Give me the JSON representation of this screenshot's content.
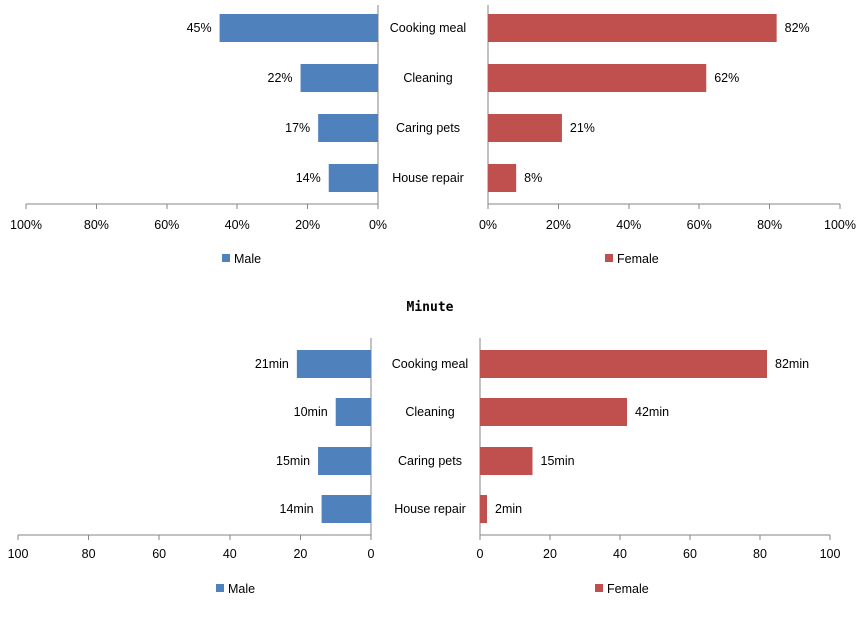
{
  "colors": {
    "male": "#4F81BD",
    "female": "#C0504D"
  },
  "middle_title": "Minute",
  "chart_data": [
    {
      "type": "bar",
      "id": "percent",
      "orientation": "horizontal-butterfly",
      "categories": [
        "Cooking meal",
        "Cleaning",
        "Caring pets",
        "House repair"
      ],
      "series": [
        {
          "name": "Male",
          "values": [
            45,
            22,
            17,
            14
          ],
          "labels": [
            "45%",
            "22%",
            "17%",
            "14%"
          ]
        },
        {
          "name": "Female",
          "values": [
            82,
            62,
            21,
            8
          ],
          "labels": [
            "82%",
            "62%",
            "21%",
            "8%"
          ]
        }
      ],
      "xlim": [
        0,
        100
      ],
      "left_ticks": [
        "100%",
        "80%",
        "60%",
        "40%",
        "20%",
        "0%"
      ],
      "right_ticks": [
        "0%",
        "20%",
        "40%",
        "60%",
        "80%",
        "100%"
      ],
      "legend": [
        "Male",
        "Female"
      ]
    },
    {
      "type": "bar",
      "id": "minute",
      "orientation": "horizontal-butterfly",
      "categories": [
        "Cooking meal",
        "Cleaning",
        "Caring pets",
        "House repair"
      ],
      "series": [
        {
          "name": "Male",
          "values": [
            21,
            10,
            15,
            14
          ],
          "labels": [
            "21min",
            "10min",
            "15min",
            "14min"
          ]
        },
        {
          "name": "Female",
          "values": [
            82,
            42,
            15,
            2
          ],
          "labels": [
            "82min",
            "42min",
            "15min",
            "2min"
          ]
        }
      ],
      "xlim": [
        0,
        100
      ],
      "left_ticks": [
        "100",
        "80",
        "60",
        "40",
        "20",
        "0"
      ],
      "right_ticks": [
        "0",
        "20",
        "40",
        "60",
        "80",
        "100"
      ],
      "legend": [
        "Male",
        "Female"
      ]
    }
  ]
}
